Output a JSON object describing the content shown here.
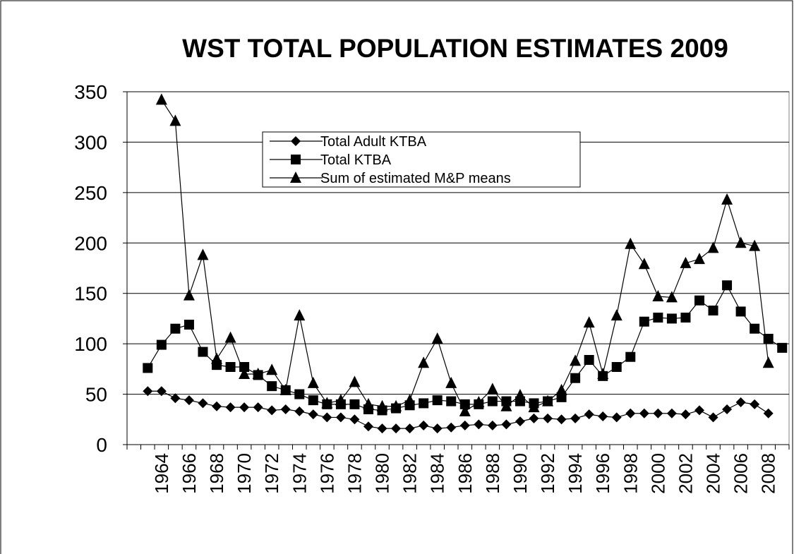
{
  "chart_data": {
    "type": "line",
    "title": "WST TOTAL POPULATION ESTIMATES 2009",
    "categories": [
      null,
      null,
      "1964",
      null,
      "1966",
      null,
      "1968",
      null,
      "1970",
      null,
      "1972",
      null,
      "1974",
      null,
      "1976",
      null,
      "1978",
      null,
      "1980",
      null,
      "1982",
      null,
      "1984",
      null,
      "1986",
      null,
      "1988",
      null,
      "1990",
      null,
      "1992",
      null,
      "1994",
      null,
      "1996",
      null,
      "1998",
      null,
      "2000",
      null,
      "2002",
      null,
      "2004",
      null,
      "2006",
      null,
      "2008",
      null
    ],
    "series": [
      {
        "name": "Total Adult KTBA",
        "color": "#000000",
        "marker": "diamond",
        "values": [
          null,
          53,
          53,
          46,
          44,
          41,
          38,
          37,
          37,
          37,
          34,
          35,
          33,
          30,
          27,
          27,
          25,
          18,
          16,
          16,
          16,
          19,
          16,
          17,
          19,
          20,
          19,
          20,
          23,
          26,
          26,
          25,
          26,
          30,
          28,
          27,
          31,
          31,
          31,
          31,
          30,
          34,
          27,
          35,
          42,
          40,
          31,
          null
        ]
      },
      {
        "name": "Total KTBA",
        "color": "#000000",
        "marker": "square",
        "values": [
          null,
          76,
          99,
          115,
          119,
          92,
          79,
          77,
          77,
          69,
          58,
          54,
          50,
          44,
          40,
          40,
          40,
          35,
          34,
          36,
          39,
          41,
          44,
          43,
          40,
          40,
          43,
          43,
          43,
          41,
          43,
          47,
          66,
          84,
          68,
          77,
          87,
          122,
          126,
          125,
          126,
          143,
          133,
          158,
          132,
          115,
          105,
          96
        ]
      },
      {
        "name": "Sum of estimated M&P means",
        "color": "#000000",
        "marker": "triangle",
        "values": [
          null,
          null,
          342,
          321,
          148,
          188,
          85,
          106,
          70,
          70,
          74,
          54,
          128,
          61,
          41,
          44,
          62,
          40,
          38,
          38,
          44,
          81,
          105,
          61,
          33,
          42,
          55,
          38,
          49,
          37,
          43,
          54,
          83,
          121,
          70,
          128,
          199,
          179,
          147,
          146,
          180,
          184,
          195,
          243,
          200,
          197,
          81,
          null
        ]
      }
    ],
    "ylim": [
      0,
      350
    ],
    "yticks": [
      0,
      50,
      100,
      150,
      200,
      250,
      300,
      350
    ],
    "grid": true
  }
}
